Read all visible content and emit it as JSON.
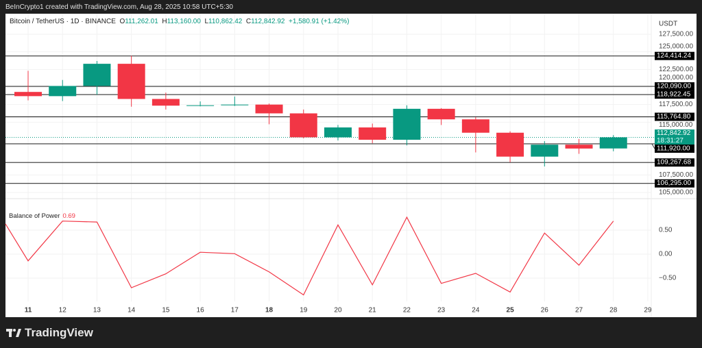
{
  "credit": "BeInCrypto1 created with TradingView.com, Aug 28, 2025 10:58 UTC+5:30",
  "legend": {
    "symbol": "Bitcoin / TetherUS · 1D · BINANCE",
    "o_label": "O",
    "o": "111,262.01",
    "h_label": "H",
    "h": "113,160.00",
    "l_label": "L",
    "l": "110,862.42",
    "c_label": "C",
    "c": "112,842.92",
    "change": "+1,580.91 (+1.42%)"
  },
  "brand": "TradingView",
  "colors": {
    "up": "#089981",
    "down": "#f23645",
    "bop": "#f23645",
    "level_line": "#333333"
  },
  "chart_data": [
    {
      "type": "candlestick",
      "currency_label": "USDT",
      "ylim": [
        104000,
        129000
      ],
      "y_ticks": [
        "127,500.00",
        "125,000.00",
        "122,500.00",
        "120,000.00",
        "117,500.00",
        "115,000.00",
        "107,500.00",
        "105,000.00"
      ],
      "y_tick_values": [
        127500,
        125000,
        122500,
        120000,
        117500,
        115000,
        107500,
        105000
      ],
      "x_ticks": [
        "11",
        "12",
        "13",
        "14",
        "15",
        "16",
        "17",
        "18",
        "19",
        "20",
        "21",
        "22",
        "23",
        "24",
        "25",
        "26",
        "27",
        "28",
        "29"
      ],
      "bold_ticks": [
        "11",
        "18",
        "25"
      ],
      "candles": [
        {
          "d": "11",
          "o": 119300,
          "h": 122300,
          "l": 118100,
          "c": 118700
        },
        {
          "d": "12",
          "o": 118700,
          "h": 121000,
          "l": 118000,
          "c": 120150
        },
        {
          "d": "13",
          "o": 120150,
          "h": 123700,
          "l": 118900,
          "c": 123300
        },
        {
          "d": "14",
          "o": 123300,
          "h": 124450,
          "l": 117200,
          "c": 118300
        },
        {
          "d": "15",
          "o": 118300,
          "h": 119200,
          "l": 116800,
          "c": 117350
        },
        {
          "d": "16",
          "o": 117350,
          "h": 117950,
          "l": 117250,
          "c": 117400
        },
        {
          "d": "17",
          "o": 117400,
          "h": 118650,
          "l": 117300,
          "c": 117500
        },
        {
          "d": "18",
          "o": 117500,
          "h": 117650,
          "l": 114700,
          "c": 116250
        },
        {
          "d": "19",
          "o": 116250,
          "h": 116800,
          "l": 112700,
          "c": 112850
        },
        {
          "d": "20",
          "o": 112850,
          "h": 114600,
          "l": 112400,
          "c": 114250
        },
        {
          "d": "21",
          "o": 114250,
          "h": 114800,
          "l": 112000,
          "c": 112500
        },
        {
          "d": "22",
          "o": 112500,
          "h": 117400,
          "l": 111700,
          "c": 116900
        },
        {
          "d": "23",
          "o": 116900,
          "h": 117000,
          "l": 114600,
          "c": 115400
        },
        {
          "d": "24",
          "o": 115400,
          "h": 115700,
          "l": 110700,
          "c": 113500
        },
        {
          "d": "25",
          "o": 113500,
          "h": 113700,
          "l": 109300,
          "c": 110100
        },
        {
          "d": "26",
          "o": 110100,
          "h": 112300,
          "l": 108700,
          "c": 111800
        },
        {
          "d": "27",
          "o": 111800,
          "h": 112600,
          "l": 110500,
          "c": 111250
        },
        {
          "d": "28",
          "o": 111262.01,
          "h": 113160,
          "l": 110862.42,
          "c": 112842.92
        }
      ],
      "levels": [
        {
          "value": 124414.24,
          "label": "124,414.24"
        },
        {
          "value": 120090.0,
          "label": "120,090.00"
        },
        {
          "value": 118922.45,
          "label": "118,922.45"
        },
        {
          "value": 115764.8,
          "label": "115,764.80"
        },
        {
          "value": 111920.0,
          "label": "111,920.00"
        },
        {
          "value": 109267.68,
          "label": "109,267.68"
        },
        {
          "value": 106295.0,
          "label": "106,295.00"
        }
      ],
      "current_price": {
        "value": 112842.92,
        "label": "112,842.92",
        "countdown": "18:31:27"
      }
    },
    {
      "type": "line",
      "title": "Balance of Power",
      "last_value": "0.69",
      "ylim": [
        -1.0,
        1.0
      ],
      "y_ticks": [
        "0.50",
        "0.00",
        "−0.50"
      ],
      "y_tick_values": [
        0.5,
        0,
        -0.5
      ],
      "x": [
        "10",
        "11",
        "12",
        "13",
        "14",
        "15",
        "16",
        "17",
        "18",
        "19",
        "20",
        "21",
        "22",
        "23",
        "24",
        "25",
        "26",
        "27",
        "28"
      ],
      "values": [
        0.63,
        -0.14,
        0.69,
        0.67,
        -0.7,
        -0.41,
        0.04,
        0.01,
        -0.37,
        -0.85,
        0.61,
        -0.64,
        0.77,
        -0.61,
        -0.4,
        -0.79,
        0.44,
        -0.23,
        0.69
      ]
    }
  ]
}
